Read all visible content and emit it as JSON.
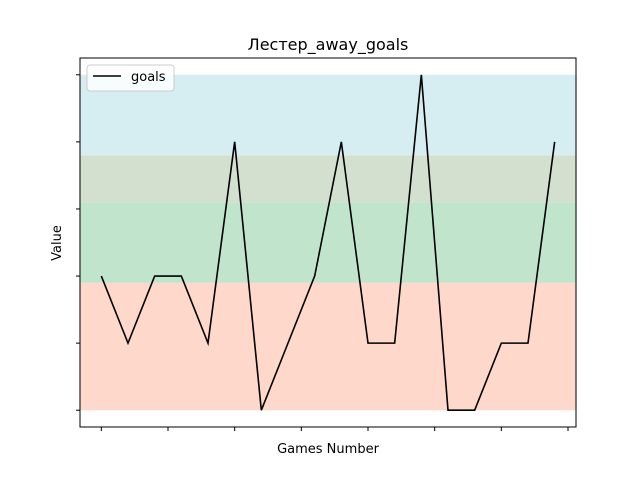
{
  "chart_data": {
    "type": "line",
    "title": "Лестер_away_goals",
    "xlabel": "Games Number",
    "ylabel": "Value",
    "x": [
      1,
      2,
      3,
      4,
      5,
      6,
      7,
      8,
      9,
      10,
      11,
      12,
      13,
      14,
      15,
      16,
      17,
      18
    ],
    "series": [
      {
        "name": "goals",
        "color": "#000000",
        "values": [
          2,
          1,
          2,
          2,
          1,
          4,
          0,
          1,
          2,
          4,
          1,
          1,
          5,
          0,
          0,
          1,
          1,
          4
        ]
      }
    ],
    "xlim": [
      0.2,
      18.8
    ],
    "ylim": [
      -0.25,
      5.25
    ],
    "xticks": [
      1,
      3.5,
      6,
      8.5,
      11,
      13.5,
      16,
      18.5
    ],
    "yticks": [
      0,
      1,
      2,
      3,
      4,
      5
    ],
    "tick_labels_visible": false,
    "bands": [
      {
        "from": 0,
        "to": 1.9,
        "color": "#fed8ca"
      },
      {
        "from": 1.9,
        "to": 3.1,
        "color": "#c1e4cc"
      },
      {
        "from": 3.1,
        "to": 3.8,
        "color": "#d3e0d0"
      },
      {
        "from": 3.8,
        "to": 5,
        "color": "#d6edf1"
      }
    ],
    "legend_position": "top-left",
    "grid": false
  }
}
